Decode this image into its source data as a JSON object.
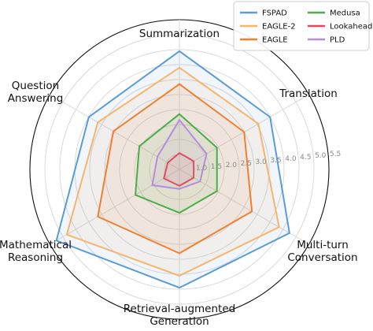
{
  "chart_data": {
    "type": "radar",
    "axes": [
      [
        "Summarization"
      ],
      [
        "Translation"
      ],
      [
        "Multi-turn",
        "Conversation"
      ],
      [
        "Retrieval-augmented",
        "Generation"
      ],
      [
        "Mathematical",
        "Reasoning"
      ],
      [
        "Question",
        "Answering"
      ]
    ],
    "radial_ticks": [
      "1.0",
      "1.5",
      "2.0",
      "2.5",
      "3.0",
      "3.5",
      "4.0",
      "4.5",
      "5.0",
      "5.5"
    ],
    "rlim": [
      0.5,
      5.5
    ],
    "grid": true,
    "legend_position": "top-right",
    "legend_columns": 2,
    "series": [
      {
        "name": "FSPAD",
        "color": "#5b9bd5",
        "values": [
          4.45,
          4.0,
          4.75,
          4.45,
          5.25,
          4.0
        ]
      },
      {
        "name": "EAGLE-2",
        "color": "#f7b56b",
        "values": [
          3.9,
          3.55,
          4.35,
          4.05,
          4.85,
          3.65
        ]
      },
      {
        "name": "EAGLE",
        "color": "#f08030",
        "values": [
          3.35,
          3.0,
          3.3,
          3.3,
          3.65,
          3.05
        ]
      },
      {
        "name": "Medusa",
        "color": "#4cad4c",
        "values": [
          2.35,
          1.95,
          1.95,
          1.95,
          2.2,
          2.05
        ]
      },
      {
        "name": "Lookahead",
        "color": "#e5475b",
        "values": [
          1.05,
          1.05,
          1.05,
          1.05,
          1.1,
          0.95
        ]
      },
      {
        "name": "PLD",
        "color": "#b48ce0",
        "values": [
          2.15,
          1.55,
          1.3,
          1.15,
          1.55,
          1.35
        ]
      }
    ]
  }
}
